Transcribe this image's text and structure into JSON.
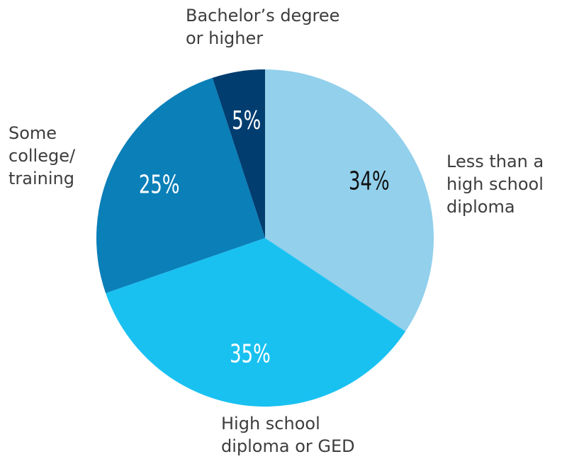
{
  "chart_data": {
    "type": "pie",
    "categories": [
      "Less than a high school diploma",
      "High school diploma or GED",
      "Some college/ training",
      "Bachelor’s degree or higher"
    ],
    "values": [
      34,
      35,
      25,
      5
    ],
    "value_labels": [
      "34%",
      "35%",
      "25%",
      "5%"
    ],
    "colors": [
      "#92d0ec",
      "#19c1f1",
      "#0a7fb8",
      "#023d6f"
    ],
    "value_label_colors": [
      "#111111",
      "#ffffff",
      "#ffffff",
      "#ffffff"
    ]
  }
}
